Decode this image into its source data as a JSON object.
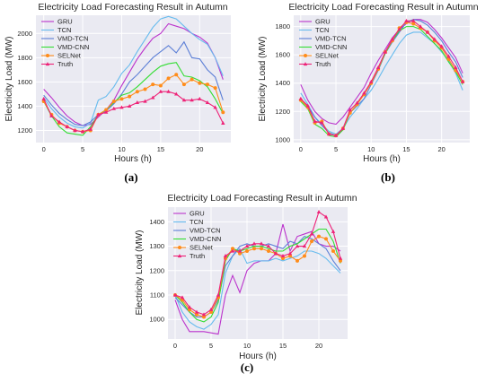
{
  "chart_data": [
    {
      "type": "line",
      "title": "Electricity Load Forecasting Result in Autumn",
      "xlabel": "Hours (h)",
      "ylabel": "Electricity Load (MW)",
      "caption": "(a)",
      "xlim": [
        -1,
        24
      ],
      "ylim": [
        1100,
        2150
      ],
      "xticks": [
        0,
        5,
        10,
        15,
        20
      ],
      "yticks": [
        1200,
        1400,
        1600,
        1800,
        2000
      ],
      "grid": true,
      "legend": "top-left",
      "x": [
        0,
        1,
        2,
        3,
        4,
        5,
        6,
        7,
        8,
        9,
        10,
        11,
        12,
        13,
        14,
        15,
        16,
        17,
        18,
        19,
        20,
        21,
        22,
        23
      ],
      "series": [
        {
          "name": "GRU",
          "color": "#bb33cc",
          "marker": "none",
          "values": [
            1540,
            1470,
            1390,
            1320,
            1270,
            1240,
            1250,
            1310,
            1370,
            1450,
            1570,
            1680,
            1790,
            1880,
            1960,
            2000,
            2080,
            2060,
            2040,
            2000,
            1970,
            1920,
            1800,
            1620
          ]
        },
        {
          "name": "TCN",
          "color": "#66bbee",
          "marker": "none",
          "values": [
            1470,
            1380,
            1310,
            1260,
            1230,
            1220,
            1260,
            1450,
            1480,
            1560,
            1670,
            1740,
            1850,
            1950,
            2050,
            2120,
            2140,
            2120,
            2060,
            2000,
            1950,
            1910,
            1800,
            1650
          ]
        },
        {
          "name": "VMD-TCN",
          "color": "#5c7fd6",
          "marker": "none",
          "values": [
            1490,
            1410,
            1340,
            1290,
            1250,
            1240,
            1270,
            1330,
            1360,
            1420,
            1500,
            1600,
            1660,
            1730,
            1800,
            1850,
            1900,
            1840,
            1930,
            1800,
            1790,
            1700,
            1640,
            1450
          ]
        },
        {
          "name": "VMD-CNN",
          "color": "#33dd33",
          "marker": "none",
          "values": [
            1440,
            1320,
            1230,
            1180,
            1170,
            1160,
            1230,
            1330,
            1370,
            1430,
            1490,
            1510,
            1560,
            1620,
            1680,
            1730,
            1750,
            1760,
            1650,
            1640,
            1610,
            1560,
            1460,
            1340
          ]
        },
        {
          "name": "SELNet",
          "color": "#ff8c1a",
          "marker": "dot",
          "values": [
            1440,
            1330,
            1260,
            1230,
            1200,
            1190,
            1200,
            1330,
            1370,
            1440,
            1460,
            1480,
            1520,
            1540,
            1580,
            1570,
            1630,
            1660,
            1580,
            1620,
            1590,
            1580,
            1550,
            1350
          ]
        },
        {
          "name": "Truth",
          "color": "#ee2277",
          "marker": "triangle",
          "values": [
            1460,
            1320,
            1270,
            1230,
            1200,
            1190,
            1210,
            1330,
            1350,
            1380,
            1390,
            1400,
            1430,
            1440,
            1470,
            1520,
            1520,
            1500,
            1450,
            1450,
            1460,
            1430,
            1390,
            1260
          ]
        }
      ]
    },
    {
      "type": "line",
      "title": "Electricity Load Forecasting Result in Autumn",
      "xlabel": "Hours (h)",
      "ylabel": "Electricity Load (MW)",
      "caption": "(b)",
      "xlim": [
        -1,
        24
      ],
      "ylim": [
        980,
        1880
      ],
      "xticks": [
        0,
        5,
        10,
        15,
        20
      ],
      "yticks": [
        1000,
        1200,
        1400,
        1600,
        1800
      ],
      "grid": true,
      "legend": "top-left",
      "x": [
        0,
        1,
        2,
        3,
        4,
        5,
        6,
        7,
        8,
        9,
        10,
        11,
        12,
        13,
        14,
        15,
        16,
        17,
        18,
        19,
        20,
        21,
        22,
        23
      ],
      "series": [
        {
          "name": "GRU",
          "color": "#bb33cc",
          "marker": "none",
          "values": [
            1390,
            1280,
            1200,
            1150,
            1120,
            1110,
            1160,
            1230,
            1300,
            1370,
            1470,
            1560,
            1640,
            1720,
            1780,
            1820,
            1850,
            1850,
            1830,
            1780,
            1720,
            1650,
            1580,
            1470
          ]
        },
        {
          "name": "TCN",
          "color": "#66bbee",
          "marker": "none",
          "values": [
            1330,
            1250,
            1160,
            1110,
            1060,
            1040,
            1080,
            1160,
            1220,
            1290,
            1350,
            1430,
            1520,
            1600,
            1680,
            1740,
            1760,
            1760,
            1720,
            1680,
            1620,
            1560,
            1470,
            1350
          ]
        },
        {
          "name": "VMD-TCN",
          "color": "#5c7fd6",
          "marker": "none",
          "values": [
            1280,
            1240,
            1160,
            1100,
            1050,
            1030,
            1070,
            1190,
            1240,
            1290,
            1390,
            1490,
            1610,
            1690,
            1760,
            1830,
            1850,
            1840,
            1810,
            1760,
            1700,
            1620,
            1550,
            1440
          ]
        },
        {
          "name": "VMD-CNN",
          "color": "#33dd33",
          "marker": "none",
          "values": [
            1270,
            1220,
            1110,
            1080,
            1030,
            1020,
            1070,
            1190,
            1250,
            1330,
            1400,
            1500,
            1610,
            1700,
            1770,
            1800,
            1800,
            1780,
            1730,
            1680,
            1630,
            1550,
            1480,
            1390
          ]
        },
        {
          "name": "SELNet",
          "color": "#ff8c1a",
          "marker": "dot",
          "values": [
            1280,
            1230,
            1120,
            1130,
            1040,
            1030,
            1080,
            1190,
            1250,
            1320,
            1400,
            1500,
            1620,
            1700,
            1790,
            1830,
            1820,
            1790,
            1760,
            1700,
            1650,
            1570,
            1490,
            1410
          ]
        },
        {
          "name": "Truth",
          "color": "#ee2277",
          "marker": "triangle",
          "values": [
            1290,
            1240,
            1130,
            1120,
            1040,
            1030,
            1080,
            1210,
            1260,
            1330,
            1410,
            1510,
            1620,
            1710,
            1780,
            1840,
            1840,
            1800,
            1760,
            1710,
            1660,
            1590,
            1510,
            1410
          ]
        }
      ]
    },
    {
      "type": "line",
      "title": "Electricity Load Forecasting Result in Autumn",
      "xlabel": "Hours (h)",
      "ylabel": "Electricity Load (MW)",
      "caption": "(c)",
      "xlim": [
        -1,
        24
      ],
      "ylim": [
        920,
        1460
      ],
      "xticks": [
        0,
        5,
        10,
        15,
        20
      ],
      "yticks": [
        1000,
        1100,
        1200,
        1300,
        1400
      ],
      "grid": true,
      "legend": "top-left",
      "x": [
        0,
        1,
        2,
        3,
        4,
        5,
        6,
        7,
        8,
        9,
        10,
        11,
        12,
        13,
        14,
        15,
        16,
        17,
        18,
        19,
        20,
        21,
        22,
        23
      ],
      "series": [
        {
          "name": "GRU",
          "color": "#bb33cc",
          "marker": "none",
          "values": [
            1080,
            1000,
            950,
            950,
            950,
            945,
            940,
            1100,
            1180,
            1110,
            1200,
            1230,
            1240,
            1240,
            1270,
            1390,
            1280,
            1340,
            1350,
            1360,
            1310,
            1300,
            1300,
            1280
          ]
        },
        {
          "name": "TCN",
          "color": "#66bbee",
          "marker": "none",
          "values": [
            1100,
            1030,
            990,
            970,
            960,
            980,
            1020,
            1190,
            1260,
            1290,
            1230,
            1240,
            1240,
            1240,
            1250,
            1240,
            1250,
            1260,
            1280,
            1280,
            1270,
            1250,
            1220,
            1190
          ]
        },
        {
          "name": "VMD-TCN",
          "color": "#5c7fd6",
          "marker": "none",
          "values": [
            1090,
            1060,
            1030,
            1010,
            1010,
            1030,
            1080,
            1220,
            1260,
            1300,
            1310,
            1300,
            1300,
            1310,
            1300,
            1290,
            1320,
            1310,
            1340,
            1330,
            1310,
            1290,
            1240,
            1200
          ]
        },
        {
          "name": "VMD-CNN",
          "color": "#33dd33",
          "marker": "none",
          "values": [
            1100,
            1070,
            1030,
            1000,
            990,
            1010,
            1070,
            1240,
            1290,
            1280,
            1290,
            1300,
            1300,
            1290,
            1280,
            1280,
            1300,
            1310,
            1330,
            1350,
            1370,
            1370,
            1320,
            1230
          ]
        },
        {
          "name": "SELNet",
          "color": "#ff8c1a",
          "marker": "dot",
          "values": [
            1100,
            1080,
            1040,
            1020,
            1010,
            1030,
            1090,
            1250,
            1290,
            1270,
            1280,
            1290,
            1290,
            1280,
            1270,
            1250,
            1260,
            1240,
            1260,
            1320,
            1340,
            1330,
            1280,
            1240
          ]
        },
        {
          "name": "Truth",
          "color": "#ee2277",
          "marker": "triangle",
          "values": [
            1100,
            1090,
            1050,
            1030,
            1020,
            1040,
            1100,
            1260,
            1280,
            1280,
            1300,
            1310,
            1310,
            1300,
            1270,
            1260,
            1270,
            1300,
            1300,
            1350,
            1440,
            1420,
            1360,
            1250
          ]
        }
      ]
    }
  ]
}
